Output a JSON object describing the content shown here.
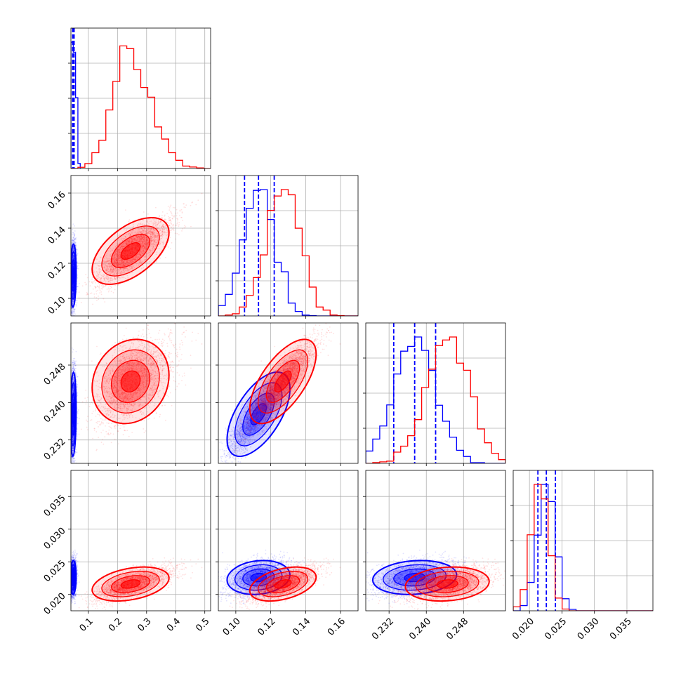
{
  "chart_data": {
    "type": "corner",
    "grid": true,
    "parameters": [
      {
        "range": [
          0.04,
          0.52
        ],
        "ticks": [
          0.1,
          0.2,
          0.3,
          0.4,
          0.5
        ],
        "tick_labels": [
          "0.1",
          "0.2",
          "0.3",
          "0.4",
          "0.5"
        ]
      },
      {
        "range": [
          0.09,
          0.17
        ],
        "ticks": [
          0.1,
          0.12,
          0.14,
          0.16
        ],
        "tick_labels": [
          "0.10",
          "0.12",
          "0.14",
          "0.16"
        ]
      },
      {
        "range": [
          0.227,
          0.257
        ],
        "ticks": [
          0.232,
          0.24,
          0.248
        ],
        "tick_labels": [
          "0.232",
          "0.240",
          "0.248"
        ]
      },
      {
        "range": [
          0.0175,
          0.039
        ],
        "ticks": [
          0.02,
          0.025,
          0.03,
          0.035
        ],
        "tick_labels": [
          "0.020",
          "0.025",
          "0.030",
          "0.035"
        ]
      }
    ],
    "series": [
      {
        "color": "#0000ff",
        "means": [
          0.048,
          0.113,
          0.2375,
          0.0226
        ],
        "sds": [
          0.005,
          0.009,
          0.0045,
          0.0013
        ],
        "corr": [
          [
            1,
            0.1,
            0.1,
            0.05
          ],
          [
            0.1,
            1,
            0.6,
            0.15
          ],
          [
            0.1,
            0.6,
            1,
            0.15
          ],
          [
            0.05,
            0.15,
            0.15,
            1
          ]
        ],
        "quantiles": [
          [
            0.046,
            0.048,
            0.051
          ],
          [
            0.105,
            0.113,
            0.122
          ],
          [
            0.233,
            0.2375,
            0.242
          ],
          [
            0.0213,
            0.0226,
            0.024
          ]
        ],
        "hist": [
          [
            0.04,
            0.048,
            1.0
          ],
          [
            0.048,
            0.056,
            0.92
          ],
          [
            0.056,
            0.064,
            0.56
          ],
          [
            0.064,
            0.072,
            0.04
          ]
        ]
      },
      {
        "color": "#ff0000",
        "means": [
          0.245,
          0.127,
          0.2445,
          0.0216
        ],
        "sds": [
          0.055,
          0.0095,
          0.0045,
          0.0013
        ],
        "corr": [
          [
            1,
            0.55,
            0.15,
            0.35
          ],
          [
            0.55,
            1,
            0.65,
            0.4
          ],
          [
            0.15,
            0.65,
            1,
            0.15
          ],
          [
            0.35,
            0.4,
            0.15,
            1
          ]
        ]
      }
    ]
  }
}
